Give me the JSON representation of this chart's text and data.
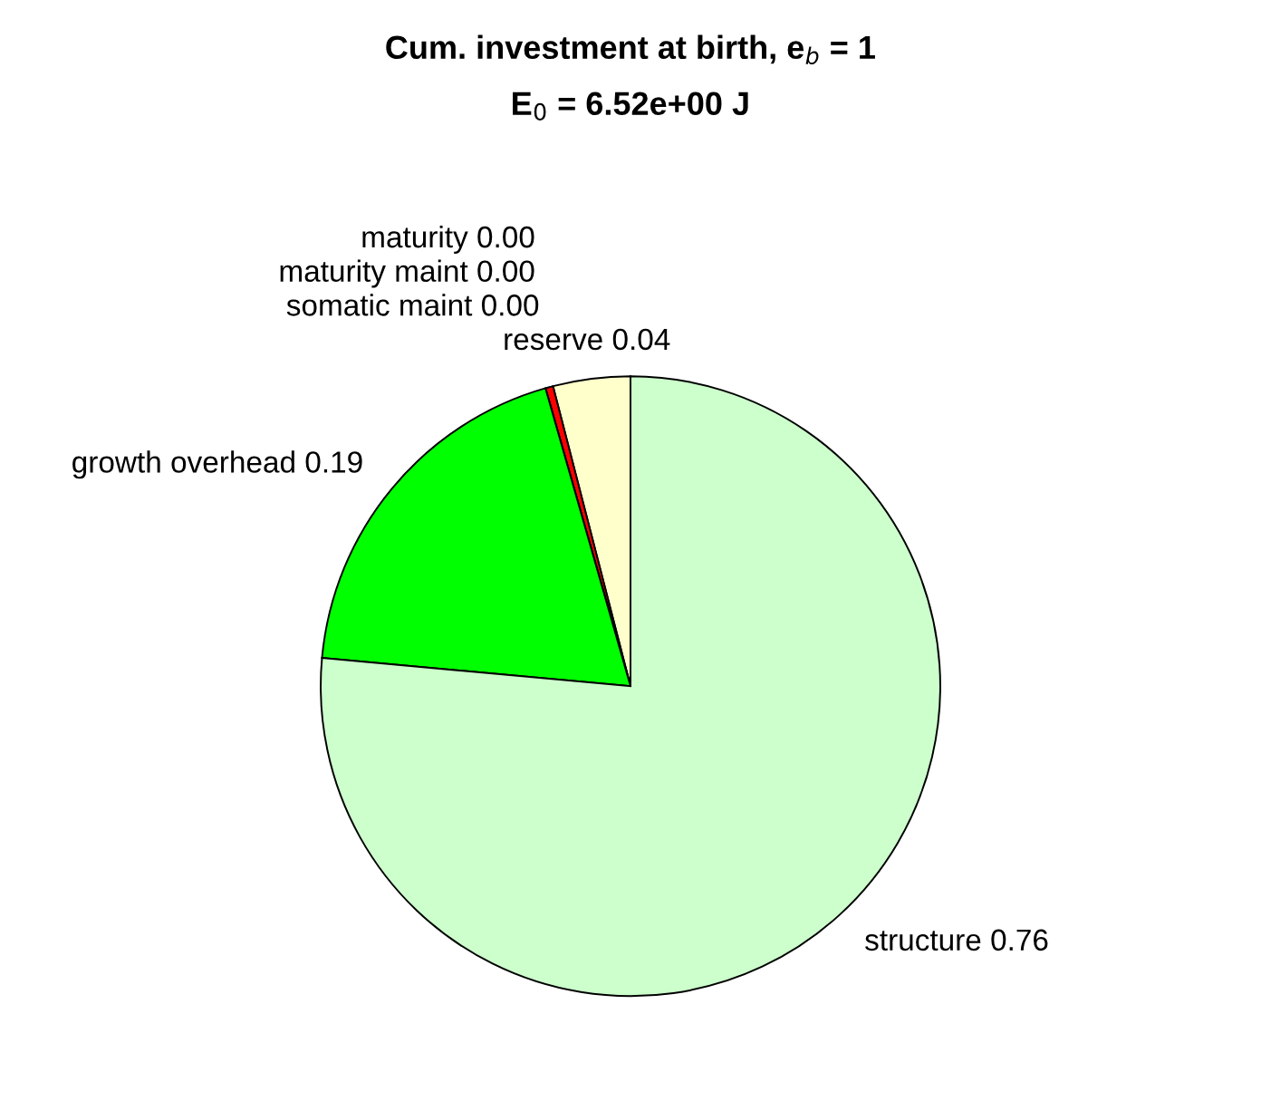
{
  "chart_data": {
    "type": "pie",
    "title": "Cum. investment at birth, e$_{b}$ = 1",
    "subtitle": "E$_{0}$ = 6.52e+00 J",
    "categories": [
      "reserve",
      "somatic maint",
      "maturity maint",
      "maturity",
      "growth overhead",
      "structure"
    ],
    "values": [
      0.04,
      0.004,
      0,
      0,
      0.19,
      0.76
    ],
    "value_labels": [
      "0.04",
      "0.00",
      "0.00",
      "0.00",
      "0.19",
      "0.76"
    ],
    "colors": [
      "#ffffcc",
      "#ff0000",
      "#ff00ff",
      "#0000ff",
      "#00ff00",
      "#ccffcc"
    ]
  }
}
